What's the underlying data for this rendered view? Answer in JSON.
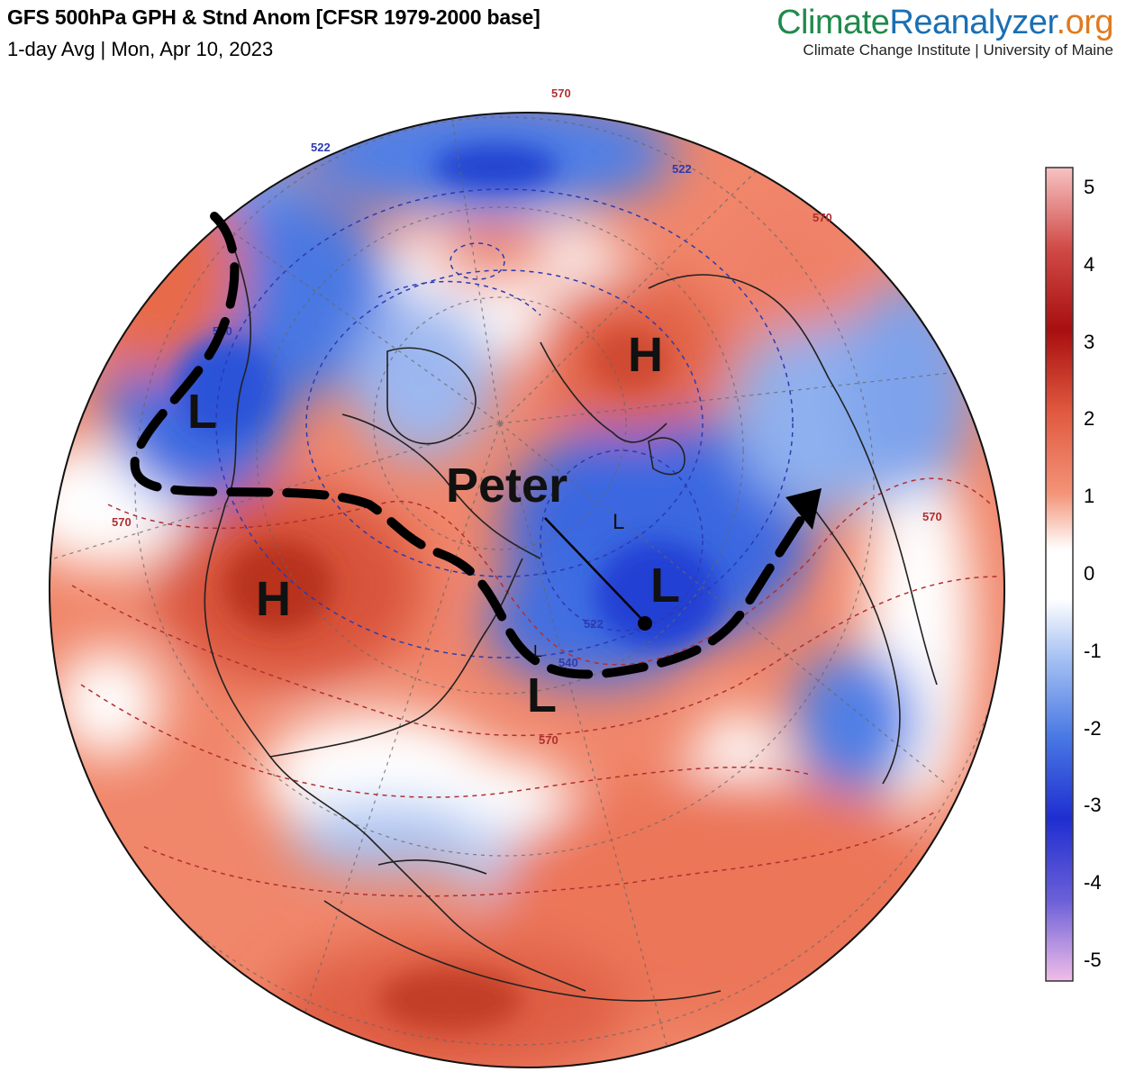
{
  "header": {
    "title": "GFS 500hPa GPH & Stnd Anom [CFSR 1979-2000 base]",
    "subtitle": "1-day Avg | Mon, Apr 10, 2023"
  },
  "brand": {
    "part1": "Climate",
    "part2": "Reanalyzer",
    "part3": ".org",
    "tagline": "Climate Change Institute | University of Maine"
  },
  "colors": {
    "warm_strong": "#c0392b",
    "warm": "#ef7a5a",
    "cool": "#3f6fe0",
    "cool_strong": "#1f3fd0",
    "neutral": "#ffffff"
  },
  "colorbar": {
    "ticks": [
      "5",
      "4",
      "3",
      "2",
      "1",
      "0",
      "-1",
      "-2",
      "-3",
      "-4",
      "-5"
    ],
    "range": [
      -5,
      5
    ]
  },
  "annotations": {
    "storm_name": "Peter",
    "pressure_labels": [
      "H",
      "L",
      "H",
      "L",
      "L",
      "L",
      "L"
    ],
    "contour_labels": [
      "522",
      "570",
      "540",
      "522",
      "570",
      "570",
      "522",
      "540",
      "570",
      "570"
    ]
  }
}
